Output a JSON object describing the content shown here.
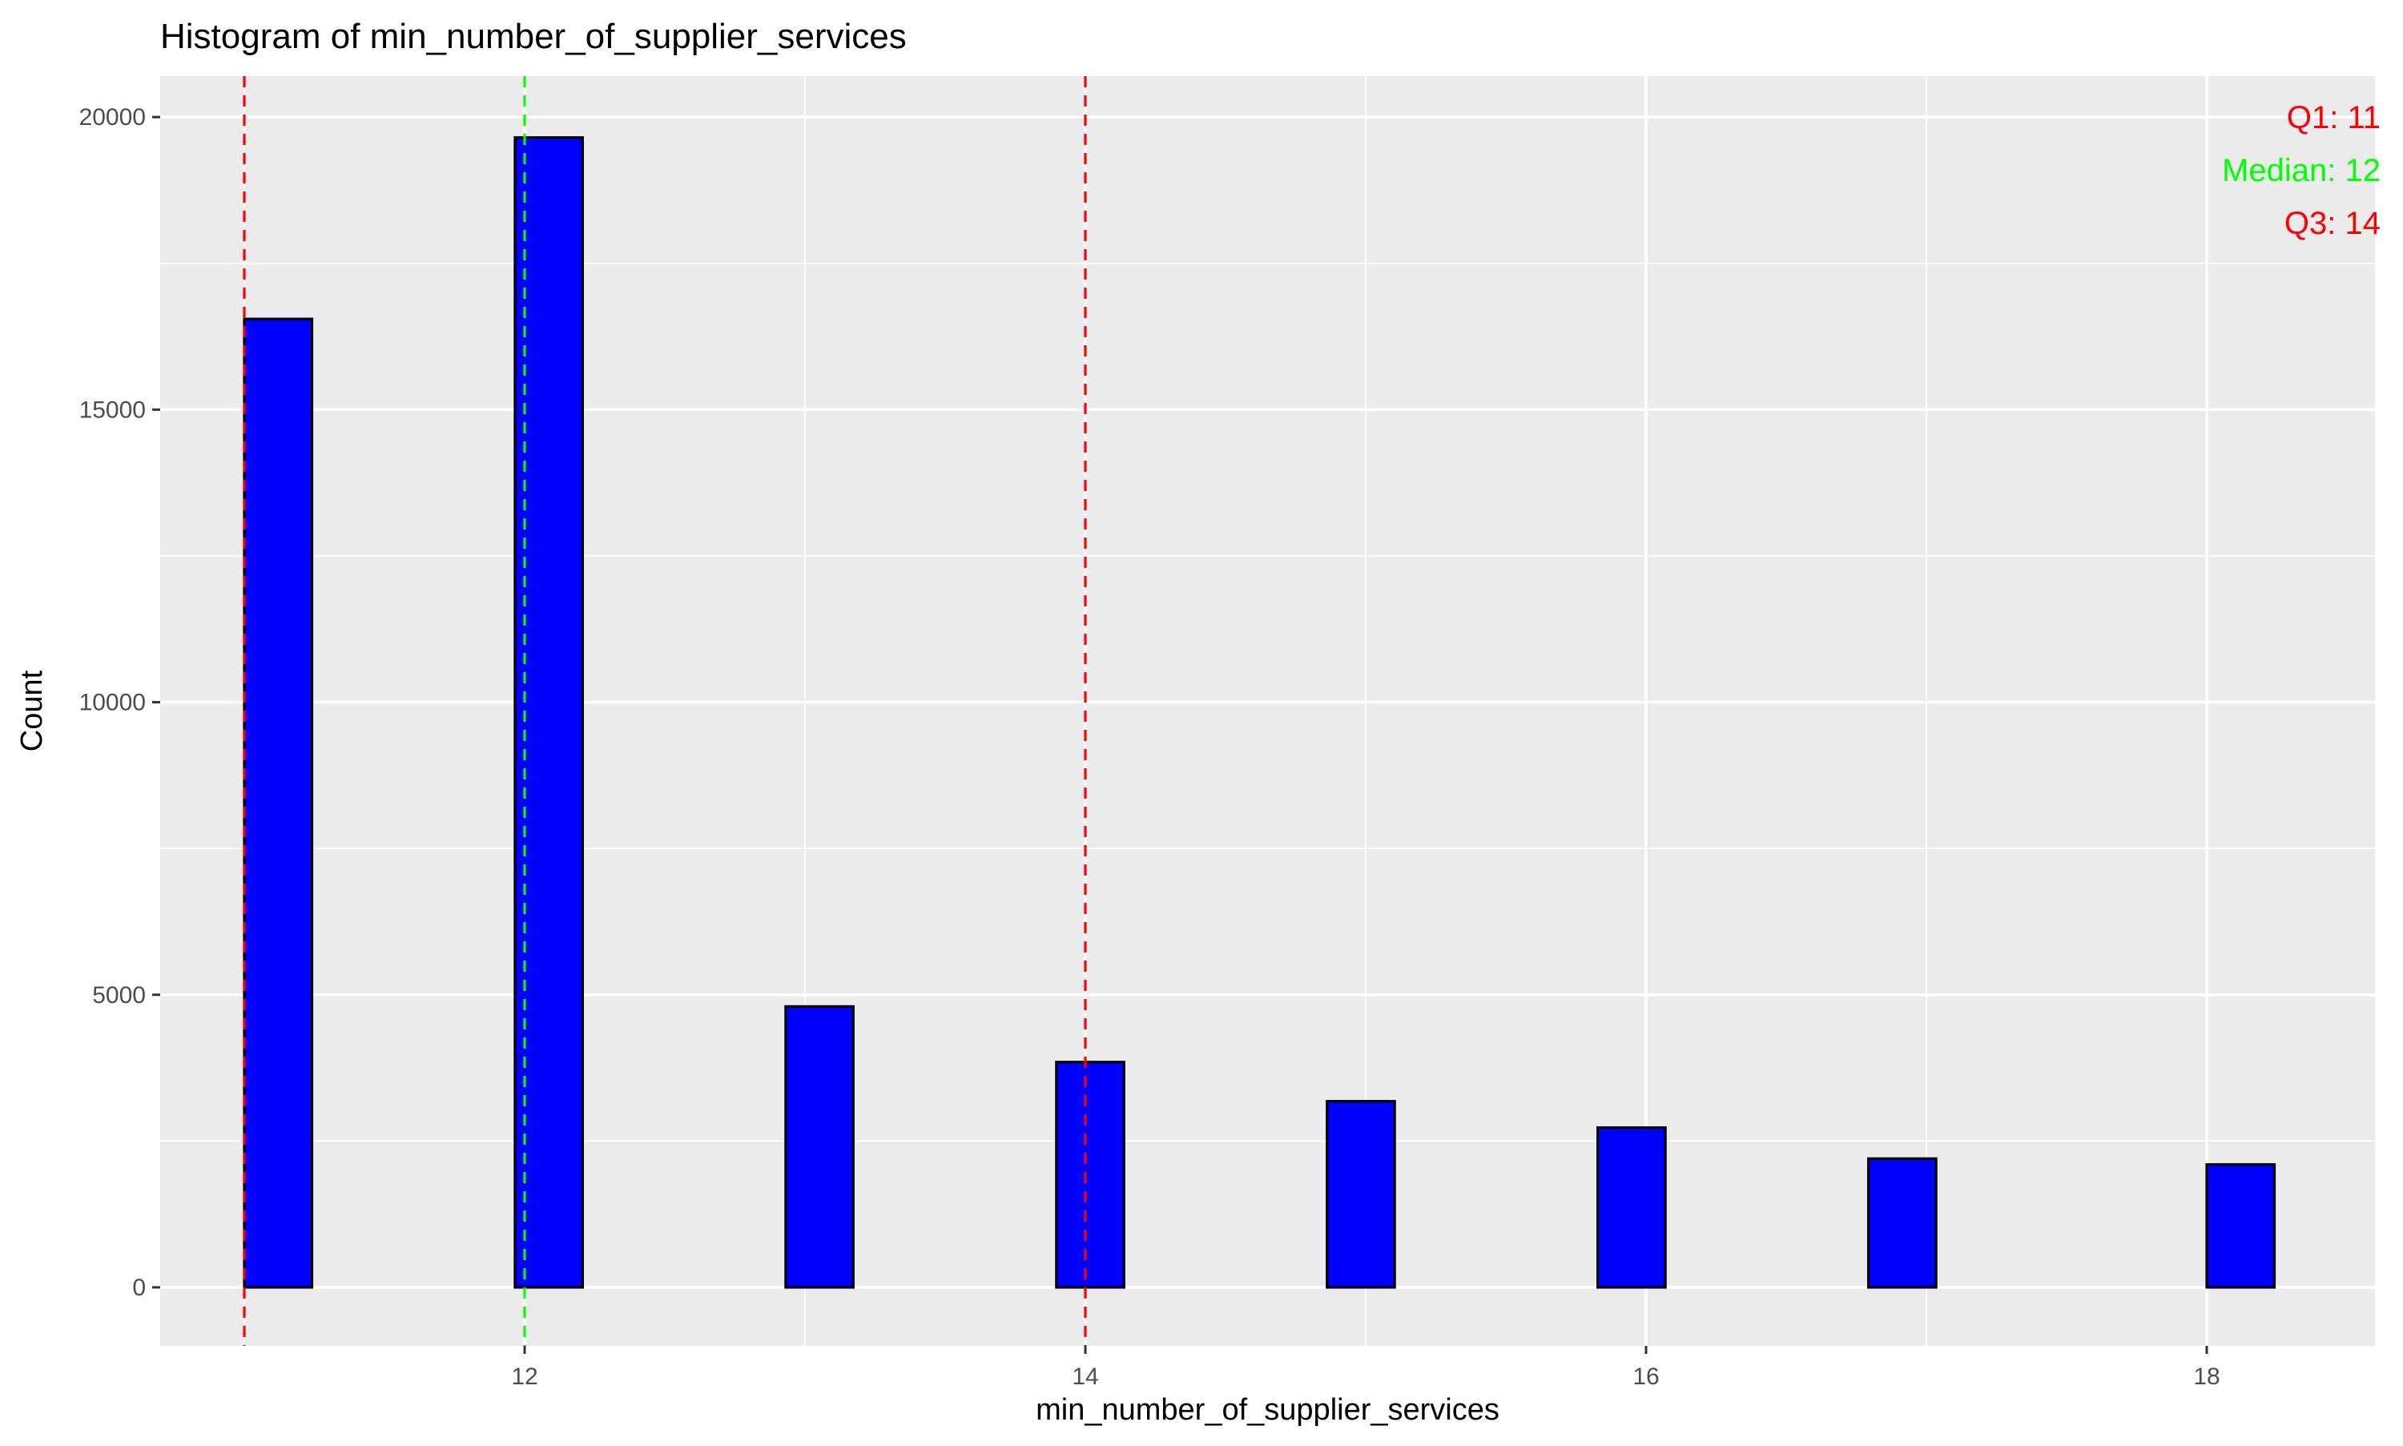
{
  "chart_data": {
    "type": "bar",
    "title": "Histogram of min_number_of_supplier_services",
    "xlabel": "min_number_of_supplier_services",
    "ylabel": "Count",
    "xlim": [
      10.7,
      18.6
    ],
    "ylim": [
      -1000,
      20700
    ],
    "x_ticks": [
      12,
      14,
      16,
      18
    ],
    "y_ticks": [
      0,
      5000,
      10000,
      15000,
      20000
    ],
    "x_ticklabels": [
      "12",
      "14",
      "16",
      "18"
    ],
    "y_ticklabels": [
      "0",
      "5000",
      "10000",
      "15000",
      "20000"
    ],
    "bins": [
      {
        "start": 11.0,
        "end": 11.2414,
        "count": 16550
      },
      {
        "start": 11.2414,
        "end": 11.9655,
        "count": 0
      },
      {
        "start": 11.9655,
        "end": 12.2069,
        "count": 19650
      },
      {
        "start": 12.2069,
        "end": 12.931,
        "count": 0
      },
      {
        "start": 12.931,
        "end": 13.1724,
        "count": 4800
      },
      {
        "start": 13.1724,
        "end": 13.8966,
        "count": 0
      },
      {
        "start": 13.8966,
        "end": 14.1379,
        "count": 3850
      },
      {
        "start": 14.1379,
        "end": 14.8621,
        "count": 0
      },
      {
        "start": 14.8621,
        "end": 15.1034,
        "count": 3180
      },
      {
        "start": 15.1034,
        "end": 15.8276,
        "count": 0
      },
      {
        "start": 15.8276,
        "end": 16.069,
        "count": 2730
      },
      {
        "start": 16.069,
        "end": 16.7931,
        "count": 0
      },
      {
        "start": 16.7931,
        "end": 17.0345,
        "count": 2200
      },
      {
        "start": 17.0345,
        "end": 18.0,
        "count": 0
      },
      {
        "start": 18.0,
        "end": 18.2414,
        "count": 2100
      }
    ],
    "vlines": [
      {
        "x": 11,
        "color": "#ff0000",
        "linetype": "dashed"
      },
      {
        "x": 12,
        "color": "#00ff00",
        "linetype": "dashed"
      },
      {
        "x": 14,
        "color": "#ff0000",
        "linetype": "dashed"
      }
    ],
    "annotations": [
      {
        "text": "Q1: 11",
        "color": "#ff0000"
      },
      {
        "text": "Median: 12",
        "color": "#00ff00"
      },
      {
        "text": "Q3: 14",
        "color": "#ff0000"
      }
    ],
    "grid": true,
    "colors": {
      "bar_fill": "#0000ff",
      "bar_outline": "#000000",
      "panel_background": "#ebebeb",
      "grid_line": "#ffffff"
    }
  }
}
